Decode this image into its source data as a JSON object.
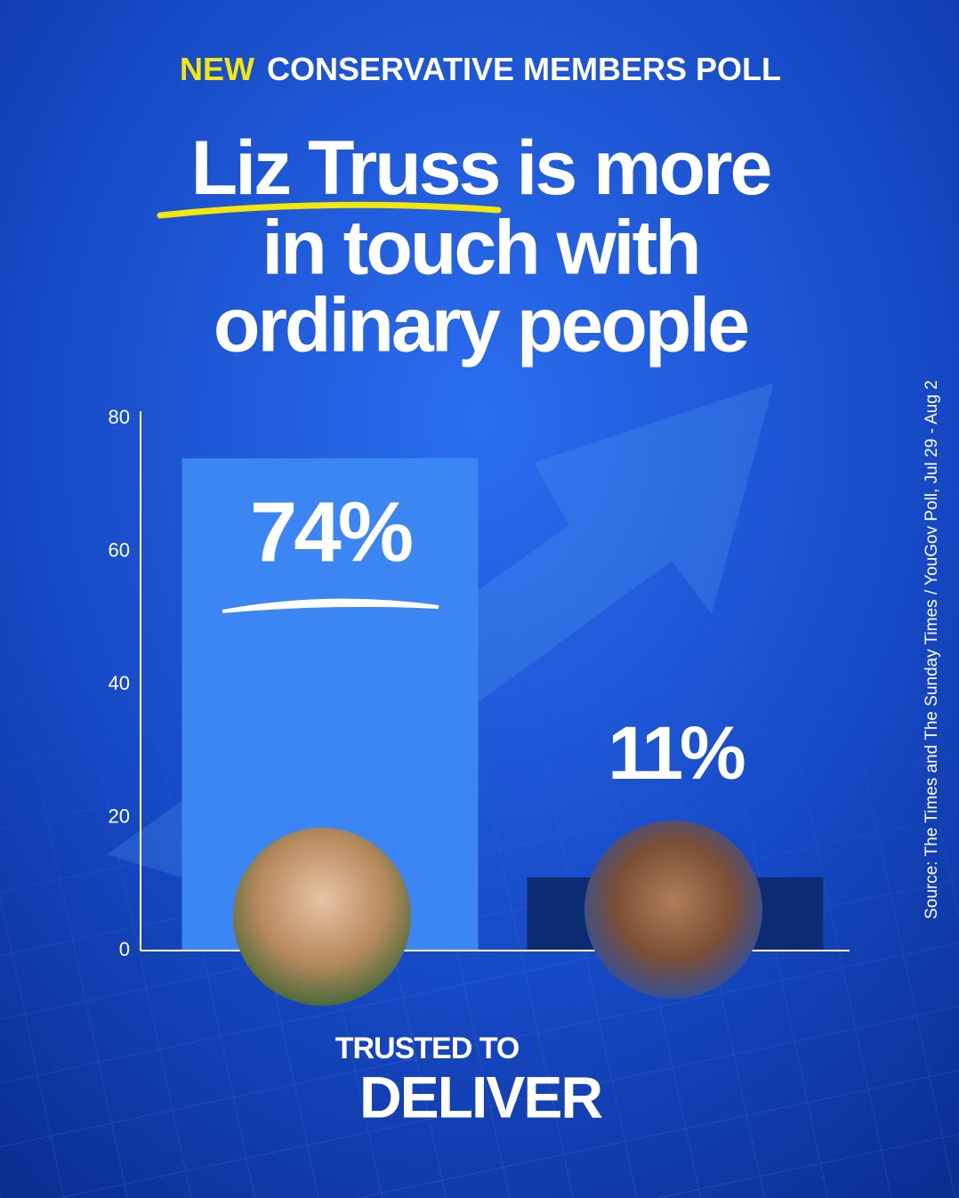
{
  "chart_data": {
    "type": "bar",
    "kicker": "NEW",
    "subtitle": "CONSERVATIVE MEMBERS POLL",
    "title": {
      "highlight": "Liz Truss",
      "lines": [
        "is more",
        "in touch with",
        "ordinary people"
      ]
    },
    "categories": [
      null,
      null
    ],
    "values": [
      74,
      11
    ],
    "value_labels": [
      "74%",
      "11%"
    ],
    "colors": [
      "#3b86f2",
      "#0b2c73"
    ],
    "ylim": [
      0,
      80
    ],
    "yticks": [
      0,
      20,
      40,
      60,
      80
    ],
    "source": "Source: The Times and The Sunday Times / YouGov Poll, Jul 29 - Aug 2",
    "footer": [
      "TRUSTED TO",
      "DELIVER"
    ]
  }
}
